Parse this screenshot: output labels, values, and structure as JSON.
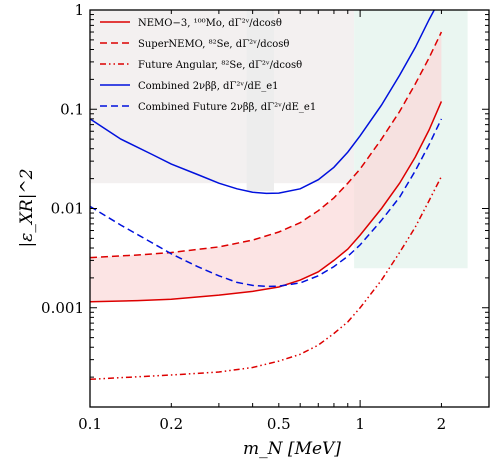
{
  "chart_data": {
    "type": "line",
    "xlabel": "m_N [MeV]",
    "ylabel": "|ε_XR|^2",
    "x_scale": "log",
    "y_scale": "log",
    "xlim": [
      0.1,
      3.0
    ],
    "ylim": [
      0.0001,
      1.0
    ],
    "x_ticks": [
      {
        "value": 0.1,
        "label": "0.1"
      },
      {
        "value": 0.2,
        "label": "0.2"
      },
      {
        "value": 0.5,
        "label": "0.5"
      },
      {
        "value": 1,
        "label": "1"
      },
      {
        "value": 2,
        "label": "2"
      }
    ],
    "y_ticks": [
      {
        "value": 0.001,
        "label": "0.001"
      },
      {
        "value": 0.01,
        "label": "0.01"
      },
      {
        "value": 0.1,
        "label": "0.1"
      },
      {
        "value": 1,
        "label": "1"
      }
    ],
    "grid": false,
    "legend_position": "top-left",
    "series": [
      {
        "name": "NEMO−3, ¹⁰⁰Mo, dΓ²ᵛ/dcosθ",
        "color": "#dd0000",
        "style": "solid",
        "points": [
          [
            0.1,
            0.00115
          ],
          [
            0.15,
            0.00118
          ],
          [
            0.2,
            0.00122
          ],
          [
            0.3,
            0.00134
          ],
          [
            0.4,
            0.00146
          ],
          [
            0.5,
            0.00162
          ],
          [
            0.6,
            0.0019
          ],
          [
            0.7,
            0.0023
          ],
          [
            0.8,
            0.003
          ],
          [
            0.9,
            0.0039
          ],
          [
            1.0,
            0.0054
          ],
          [
            1.2,
            0.01
          ],
          [
            1.4,
            0.018
          ],
          [
            1.6,
            0.033
          ],
          [
            1.8,
            0.062
          ],
          [
            2.0,
            0.12
          ]
        ]
      },
      {
        "name": "SuperNEMO, ⁸²Se, dΓ²ᵛ/dcosθ",
        "color": "#dd0000",
        "style": "dashed",
        "points": [
          [
            0.1,
            0.0032
          ],
          [
            0.15,
            0.0034
          ],
          [
            0.2,
            0.0036
          ],
          [
            0.3,
            0.0041
          ],
          [
            0.4,
            0.0048
          ],
          [
            0.5,
            0.0058
          ],
          [
            0.6,
            0.0072
          ],
          [
            0.7,
            0.0095
          ],
          [
            0.8,
            0.0128
          ],
          [
            0.9,
            0.018
          ],
          [
            1.0,
            0.025
          ],
          [
            1.2,
            0.05
          ],
          [
            1.4,
            0.095
          ],
          [
            1.6,
            0.18
          ],
          [
            1.8,
            0.33
          ],
          [
            2.0,
            0.6
          ]
        ]
      },
      {
        "name": "Future Angular, ⁸²Se, dΓ²ᵛ/dcosθ",
        "color": "#dd0000",
        "style": "dashdotdot",
        "points": [
          [
            0.1,
            0.00019
          ],
          [
            0.2,
            0.00021
          ],
          [
            0.3,
            0.000225
          ],
          [
            0.4,
            0.00025
          ],
          [
            0.5,
            0.00029
          ],
          [
            0.6,
            0.00034
          ],
          [
            0.7,
            0.00042
          ],
          [
            0.8,
            0.00055
          ],
          [
            0.9,
            0.00072
          ],
          [
            1.0,
            0.001
          ],
          [
            1.2,
            0.0019
          ],
          [
            1.4,
            0.0036
          ],
          [
            1.6,
            0.0065
          ],
          [
            1.8,
            0.012
          ],
          [
            2.0,
            0.021
          ]
        ]
      },
      {
        "name": "Combined 2νββ, dΓ²ᵛ/dE_e1",
        "color": "#0011dd",
        "style": "solid",
        "points": [
          [
            0.1,
            0.08
          ],
          [
            0.13,
            0.05
          ],
          [
            0.17,
            0.035
          ],
          [
            0.2,
            0.028
          ],
          [
            0.25,
            0.022
          ],
          [
            0.3,
            0.018
          ],
          [
            0.35,
            0.0158
          ],
          [
            0.4,
            0.0146
          ],
          [
            0.45,
            0.0142
          ],
          [
            0.5,
            0.0143
          ],
          [
            0.6,
            0.0158
          ],
          [
            0.7,
            0.0195
          ],
          [
            0.8,
            0.026
          ],
          [
            0.9,
            0.037
          ],
          [
            1.0,
            0.054
          ],
          [
            1.2,
            0.11
          ],
          [
            1.4,
            0.22
          ],
          [
            1.6,
            0.42
          ],
          [
            1.8,
            0.8
          ],
          [
            1.88,
            1.0
          ]
        ]
      },
      {
        "name": "Combined Future 2νββ, dΓ²ᵛ/dE_e1",
        "color": "#0011dd",
        "style": "dashed",
        "points": [
          [
            0.1,
            0.0105
          ],
          [
            0.13,
            0.0068
          ],
          [
            0.17,
            0.0045
          ],
          [
            0.2,
            0.0035
          ],
          [
            0.25,
            0.0026
          ],
          [
            0.3,
            0.0021
          ],
          [
            0.35,
            0.0018
          ],
          [
            0.4,
            0.00168
          ],
          [
            0.45,
            0.00164
          ],
          [
            0.5,
            0.00165
          ],
          [
            0.6,
            0.00178
          ],
          [
            0.7,
            0.0021
          ],
          [
            0.8,
            0.0026
          ],
          [
            0.9,
            0.0033
          ],
          [
            1.0,
            0.0043
          ],
          [
            1.2,
            0.0076
          ],
          [
            1.4,
            0.013
          ],
          [
            1.6,
            0.024
          ],
          [
            1.8,
            0.044
          ],
          [
            2.0,
            0.08
          ]
        ]
      }
    ],
    "background_regions": [
      {
        "label": "",
        "color": "#f3f0f0",
        "x_range": [
          0.1,
          0.95
        ],
        "y_range": [
          0.018,
          1.0
        ]
      },
      {
        "label": "",
        "color": "#ededed",
        "x_range": [
          0.38,
          0.48
        ],
        "y_range": [
          0.015,
          1.0
        ]
      },
      {
        "label": "",
        "color": "#eaf6f1",
        "x_range": [
          0.95,
          2.5
        ],
        "y_range": [
          0.0025,
          1.0
        ]
      }
    ]
  }
}
